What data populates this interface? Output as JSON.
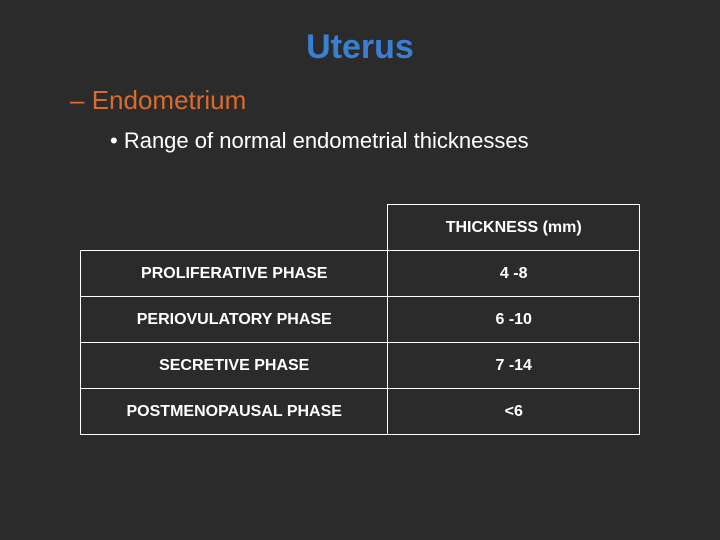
{
  "title": {
    "text": "Uterus",
    "color": "#3a80d2"
  },
  "sub1": {
    "prefix": "– ",
    "text": "Endometrium",
    "color": "#d96c2c"
  },
  "sub2": {
    "prefix": "• ",
    "text": "Range of normal endometrial thicknesses"
  },
  "table": {
    "header_right": "THICKNESS (mm)",
    "rows": [
      {
        "label": "PROLIFERATIVE PHASE",
        "value": "4 -8"
      },
      {
        "label": "PERIOVULATORY PHASE",
        "value": "6 -10"
      },
      {
        "label": "SECRETIVE PHASE",
        "value": "7 -14"
      },
      {
        "label": "POSTMENOPAUSAL PHASE",
        "value": "<6"
      }
    ]
  },
  "colors": {
    "background": "#2b2b2b",
    "text": "#ffffff",
    "border": "#ffffff"
  }
}
